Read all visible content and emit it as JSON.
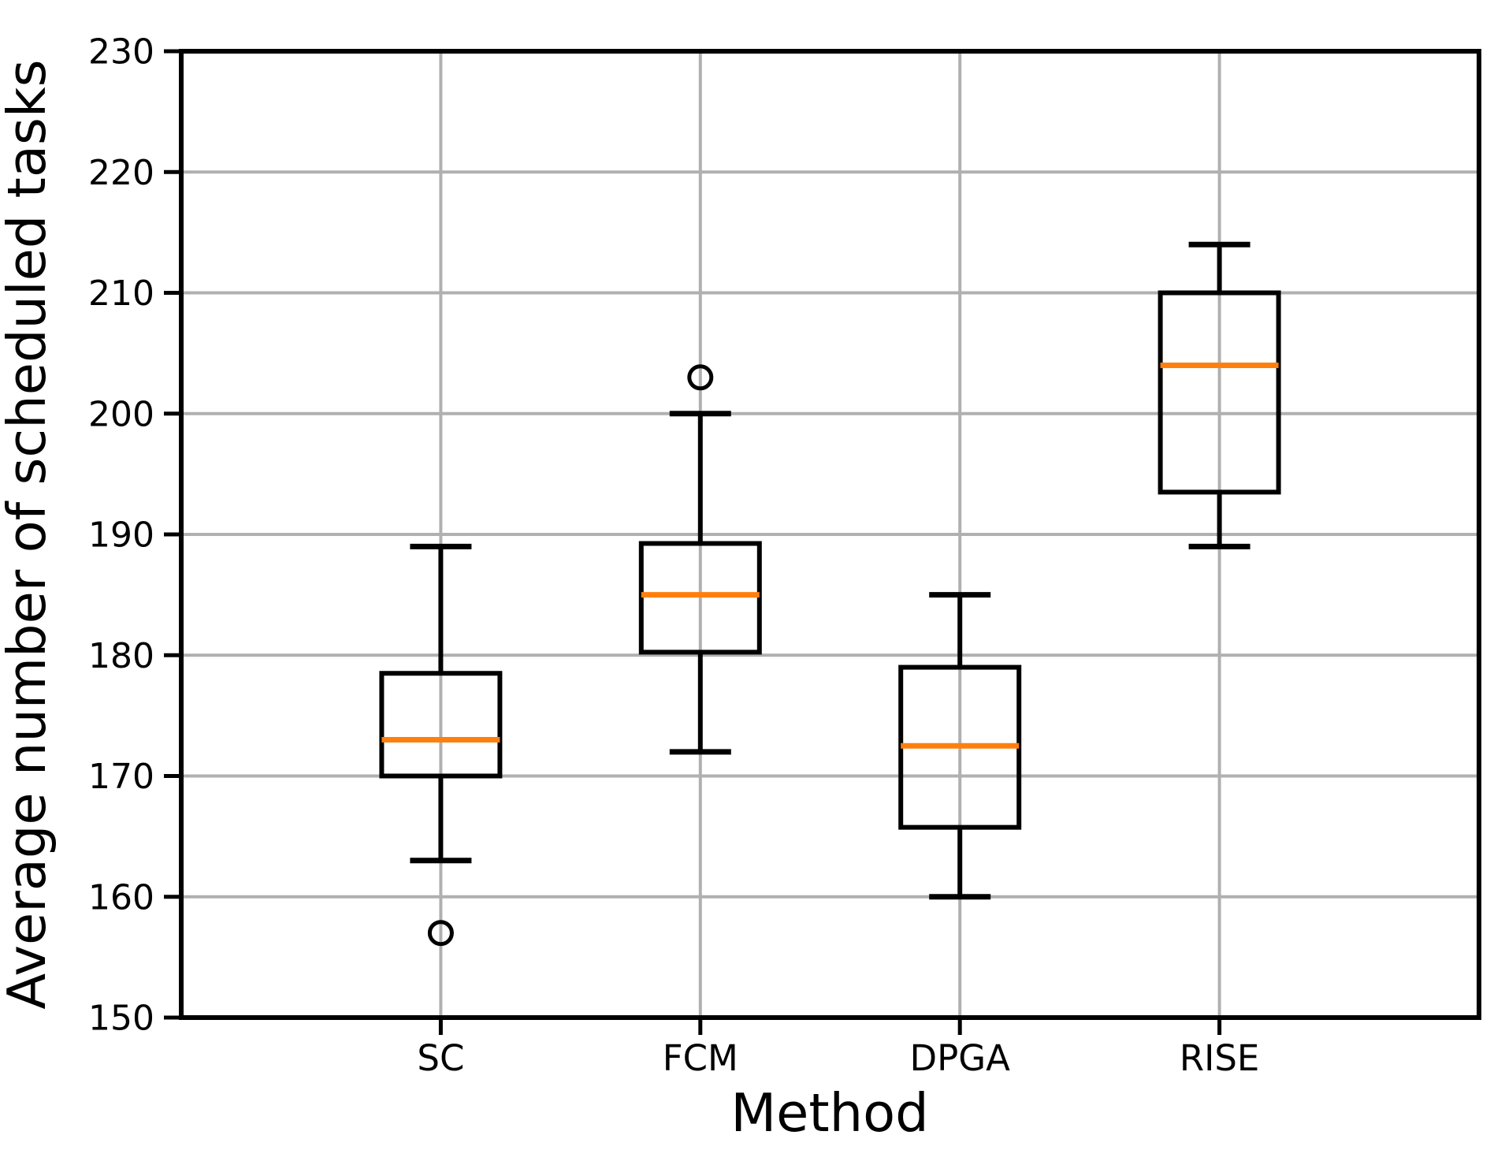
{
  "figure": {
    "background": "#ffffff"
  },
  "chart_data": {
    "type": "boxplot",
    "title": "",
    "xlabel": "Method",
    "ylabel": "Average number of scheduled tasks",
    "categories": [
      "SC",
      "FCM",
      "DPGA",
      "RISE"
    ],
    "series": [
      {
        "name": "SC",
        "whisker_low": 163,
        "q1": 170,
        "median": 173,
        "q3": 178.5,
        "whisker_high": 189,
        "outliers": [
          157
        ]
      },
      {
        "name": "FCM",
        "whisker_low": 172,
        "q1": 180.25,
        "median": 185,
        "q3": 189.25,
        "whisker_high": 200,
        "outliers": [
          203
        ]
      },
      {
        "name": "DPGA",
        "whisker_low": 160,
        "q1": 165.75,
        "median": 172.5,
        "q3": 179,
        "whisker_high": 185,
        "outliers": []
      },
      {
        "name": "RISE",
        "whisker_low": 189,
        "q1": 193.5,
        "median": 204,
        "q3": 210,
        "whisker_high": 214,
        "outliers": []
      }
    ],
    "ylim": [
      150,
      230
    ],
    "yticks": [
      150,
      160,
      170,
      180,
      190,
      200,
      210,
      220,
      230
    ],
    "grid": true,
    "legend": "none",
    "colors": {
      "median": "#ff7f0e",
      "box": "#000000",
      "grid": "#b0b0b0",
      "spine": "#000000",
      "background": "#ffffff"
    }
  }
}
